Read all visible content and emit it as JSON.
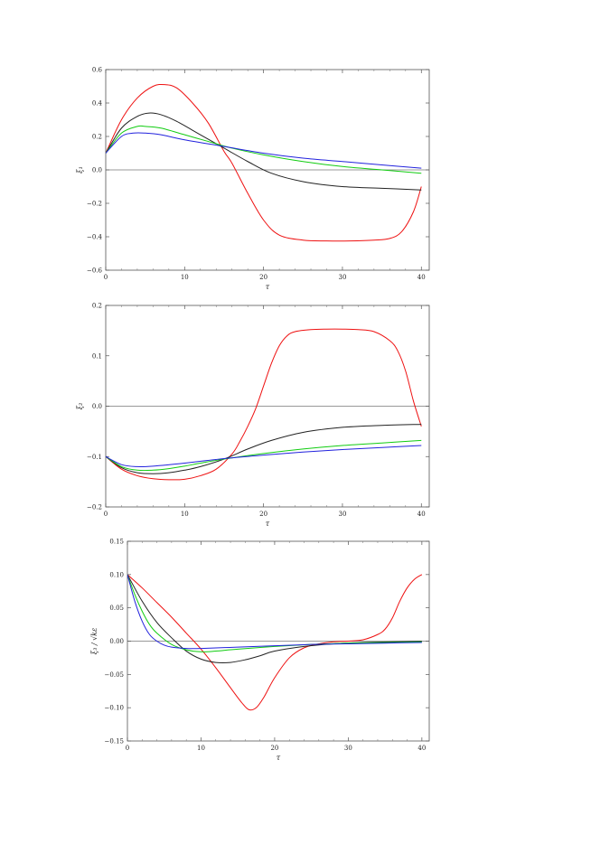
{
  "chart_data": [
    {
      "type": "line",
      "xlabel": "τ",
      "ylabel": "ξ₁",
      "xlim": [
        0,
        41
      ],
      "ylim": [
        -0.6,
        0.6
      ],
      "xticks": [
        0,
        10,
        20,
        30,
        40
      ],
      "yticks": [
        -0.6,
        -0.4,
        -0.2,
        0.0,
        0.2,
        0.4,
        0.6
      ],
      "xtick_labels": [
        "0",
        "10",
        "20",
        "30",
        "40"
      ],
      "ytick_labels": [
        "−0.6",
        "−0.4",
        "−0.2",
        "0.0",
        "0.2",
        "0.4",
        "0.6"
      ],
      "zero_line": true,
      "grid": false,
      "series": [
        {
          "color": "#ee1111",
          "x": [
            0,
            2,
            4,
            6,
            7.5,
            9,
            11,
            13,
            15,
            16,
            18,
            20,
            22,
            25,
            28,
            31,
            34,
            36,
            37.5,
            39,
            40
          ],
          "y": [
            0.1,
            0.3,
            0.43,
            0.5,
            0.51,
            0.49,
            0.4,
            0.28,
            0.11,
            0.04,
            -0.14,
            -0.3,
            -0.39,
            -0.42,
            -0.425,
            -0.425,
            -0.42,
            -0.41,
            -0.37,
            -0.25,
            -0.1
          ]
        },
        {
          "color": "#222222",
          "x": [
            0,
            2,
            4,
            5.5,
            7,
            9,
            12,
            15,
            18,
            21,
            25,
            30,
            35,
            40
          ],
          "y": [
            0.1,
            0.25,
            0.32,
            0.34,
            0.33,
            0.29,
            0.21,
            0.13,
            0.05,
            -0.02,
            -0.07,
            -0.1,
            -0.11,
            -0.12
          ]
        },
        {
          "color": "#11cc11",
          "x": [
            0,
            2,
            4,
            5,
            7,
            10,
            13,
            16,
            20,
            25,
            30,
            35,
            40
          ],
          "y": [
            0.1,
            0.22,
            0.26,
            0.26,
            0.25,
            0.21,
            0.17,
            0.13,
            0.09,
            0.05,
            0.02,
            0.0,
            -0.02
          ]
        },
        {
          "color": "#2222dd",
          "x": [
            0,
            2,
            3.5,
            5,
            7,
            10,
            15,
            20,
            25,
            30,
            35,
            40
          ],
          "y": [
            0.1,
            0.2,
            0.22,
            0.22,
            0.21,
            0.18,
            0.14,
            0.1,
            0.07,
            0.05,
            0.03,
            0.01
          ]
        }
      ]
    },
    {
      "type": "line",
      "xlabel": "τ",
      "ylabel": "ξ₂",
      "xlim": [
        0,
        41
      ],
      "ylim": [
        -0.2,
        0.2
      ],
      "xticks": [
        0,
        10,
        20,
        30,
        40
      ],
      "yticks": [
        -0.2,
        -0.1,
        0.0,
        0.1,
        0.2
      ],
      "xtick_labels": [
        "0",
        "10",
        "20",
        "30",
        "40"
      ],
      "ytick_labels": [
        "−0.2",
        "−0.1",
        "0.0",
        "0.1",
        "0.2"
      ],
      "zero_line": true,
      "grid": false,
      "series": [
        {
          "color": "#ee1111",
          "x": [
            0,
            2,
            4,
            6,
            8,
            10,
            12,
            14,
            16,
            17,
            18,
            19,
            20,
            21,
            22,
            23,
            24,
            26,
            28,
            30,
            32,
            34,
            36,
            37,
            38,
            39,
            40
          ],
          "y": [
            -0.1,
            -0.125,
            -0.138,
            -0.144,
            -0.146,
            -0.145,
            -0.138,
            -0.125,
            -0.095,
            -0.07,
            -0.04,
            -0.005,
            0.04,
            0.085,
            0.12,
            0.14,
            0.148,
            0.152,
            0.153,
            0.153,
            0.152,
            0.148,
            0.13,
            0.11,
            0.07,
            0.01,
            -0.04
          ]
        },
        {
          "color": "#222222",
          "x": [
            0,
            2,
            4,
            6,
            8,
            10,
            12,
            15,
            18,
            21,
            25,
            30,
            35,
            40
          ],
          "y": [
            -0.1,
            -0.122,
            -0.132,
            -0.134,
            -0.132,
            -0.127,
            -0.12,
            -0.105,
            -0.085,
            -0.068,
            -0.052,
            -0.042,
            -0.038,
            -0.036
          ]
        },
        {
          "color": "#11cc11",
          "x": [
            0,
            2,
            4,
            6,
            8,
            10,
            12,
            15,
            20,
            25,
            30,
            35,
            40
          ],
          "y": [
            -0.1,
            -0.12,
            -0.127,
            -0.127,
            -0.124,
            -0.119,
            -0.113,
            -0.105,
            -0.094,
            -0.085,
            -0.078,
            -0.073,
            -0.068
          ]
        },
        {
          "color": "#2222dd",
          "x": [
            0,
            2,
            4,
            6,
            10,
            15,
            20,
            25,
            30,
            35,
            40
          ],
          "y": [
            -0.1,
            -0.116,
            -0.12,
            -0.119,
            -0.113,
            -0.104,
            -0.097,
            -0.091,
            -0.086,
            -0.082,
            -0.078
          ]
        }
      ]
    },
    {
      "type": "line",
      "xlabel": "τ",
      "ylabel": "ξ₃ / √kε",
      "xlim": [
        0,
        41
      ],
      "ylim": [
        -0.15,
        0.15
      ],
      "xticks": [
        0,
        10,
        20,
        30,
        40
      ],
      "yticks": [
        -0.15,
        -0.1,
        -0.05,
        0.0,
        0.05,
        0.1,
        0.15
      ],
      "xtick_labels": [
        "0",
        "10",
        "20",
        "30",
        "40"
      ],
      "ytick_labels": [
        "−0.15",
        "−0.10",
        "−0.05",
        "0.00",
        "0.05",
        "0.10",
        "0.15"
      ],
      "zero_line": true,
      "grid": false,
      "series": [
        {
          "color": "#ee1111",
          "x": [
            0,
            2,
            4,
            6,
            8,
            10,
            12,
            14,
            15.5,
            16.5,
            17.5,
            18.5,
            20,
            22,
            24,
            26,
            28,
            30,
            32,
            34,
            35,
            36,
            37,
            38,
            39,
            40
          ],
          "y": [
            0.1,
            0.08,
            0.058,
            0.036,
            0.012,
            -0.012,
            -0.04,
            -0.07,
            -0.092,
            -0.103,
            -0.1,
            -0.085,
            -0.055,
            -0.025,
            -0.01,
            -0.004,
            -0.001,
            0.0,
            0.002,
            0.01,
            0.018,
            0.035,
            0.06,
            0.08,
            0.093,
            0.1
          ]
        },
        {
          "color": "#222222",
          "x": [
            0,
            2,
            4,
            6,
            8,
            10,
            12,
            14,
            16,
            18,
            20,
            24,
            28,
            32,
            36,
            40
          ],
          "y": [
            0.1,
            0.06,
            0.028,
            0.005,
            -0.015,
            -0.027,
            -0.032,
            -0.032,
            -0.028,
            -0.022,
            -0.015,
            -0.008,
            -0.004,
            -0.002,
            -0.001,
            0.0
          ]
        },
        {
          "color": "#11cc11",
          "x": [
            0,
            1,
            2,
            3,
            4,
            6,
            8,
            10,
            12,
            15,
            20,
            25,
            30,
            35,
            40
          ],
          "y": [
            0.1,
            0.07,
            0.045,
            0.025,
            0.012,
            -0.005,
            -0.013,
            -0.016,
            -0.015,
            -0.012,
            -0.008,
            -0.005,
            -0.003,
            -0.002,
            -0.001
          ]
        },
        {
          "color": "#2222dd",
          "x": [
            0,
            1,
            2,
            3,
            4,
            5,
            6,
            8,
            10,
            15,
            20,
            25,
            30,
            35,
            40
          ],
          "y": [
            0.1,
            0.06,
            0.03,
            0.01,
            0.0,
            -0.006,
            -0.009,
            -0.011,
            -0.011,
            -0.009,
            -0.007,
            -0.005,
            -0.004,
            -0.003,
            -0.002
          ]
        }
      ]
    }
  ]
}
